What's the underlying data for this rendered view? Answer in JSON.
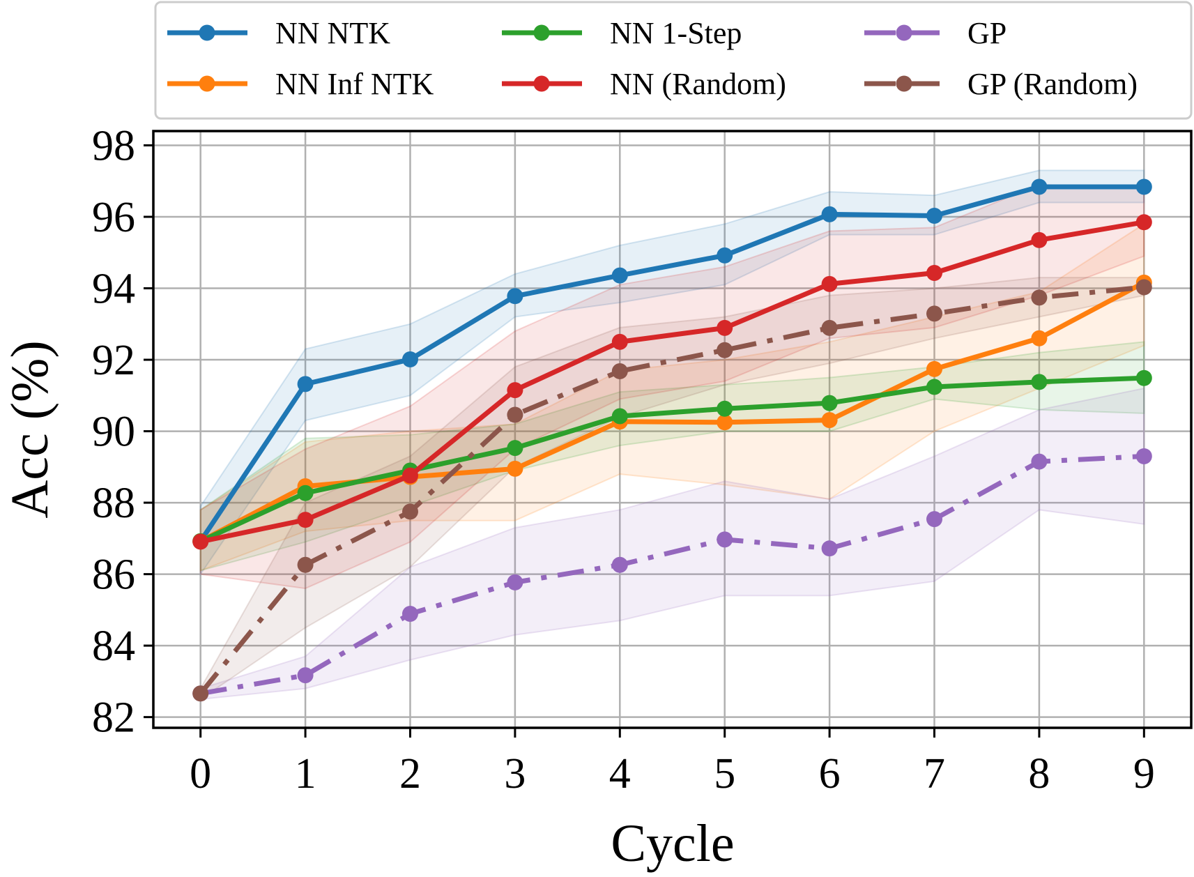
{
  "chart_data": {
    "type": "line",
    "title": "",
    "xlabel": "Cycle",
    "ylabel": "Acc (%)",
    "x": [
      0,
      1,
      2,
      3,
      4,
      5,
      6,
      7,
      8,
      9
    ],
    "xticks": [
      "0",
      "1",
      "2",
      "3",
      "4",
      "5",
      "6",
      "7",
      "8",
      "9"
    ],
    "yticks": [
      "82",
      "84",
      "86",
      "88",
      "90",
      "92",
      "94",
      "96",
      "98"
    ],
    "xlim": [
      -0.45,
      9.45
    ],
    "ylim": [
      81.7,
      98.4
    ],
    "grid": true,
    "legend": {
      "placement": "top",
      "columns": 3
    },
    "series": [
      {
        "name": "NN NTK",
        "color": "#1f77b4",
        "linestyle": "solid",
        "marker": "circle",
        "values": [
          86.92,
          91.32,
          92.01,
          93.78,
          94.36,
          94.92,
          96.07,
          96.03,
          96.84,
          96.84
        ],
        "band_low": [
          86.0,
          90.3,
          91.0,
          93.2,
          93.6,
          94.1,
          95.5,
          95.5,
          96.4,
          96.4
        ],
        "band_high": [
          87.9,
          92.3,
          93.0,
          94.4,
          95.2,
          95.8,
          96.7,
          96.6,
          97.3,
          97.3
        ]
      },
      {
        "name": "NN Inf NTK",
        "color": "#ff7f0e",
        "linestyle": "solid",
        "marker": "circle",
        "values": [
          86.92,
          88.46,
          88.72,
          88.95,
          90.27,
          90.25,
          90.31,
          91.74,
          92.6,
          94.16
        ],
        "band_low": [
          86.1,
          87.2,
          87.5,
          87.5,
          88.8,
          88.5,
          88.1,
          90.0,
          91.2,
          92.4
        ],
        "band_high": [
          87.8,
          89.7,
          90.0,
          90.2,
          91.7,
          92.0,
          92.5,
          93.2,
          93.9,
          95.8
        ]
      },
      {
        "name": "NN 1-Step",
        "color": "#2ca02c",
        "linestyle": "solid",
        "marker": "circle",
        "values": [
          86.92,
          88.27,
          88.9,
          89.53,
          90.42,
          90.63,
          90.79,
          91.24,
          91.38,
          91.49
        ],
        "band_low": [
          86.1,
          86.9,
          87.9,
          88.9,
          89.6,
          90.0,
          90.0,
          90.9,
          90.6,
          90.5
        ],
        "band_high": [
          87.8,
          89.8,
          89.9,
          90.2,
          91.1,
          91.3,
          91.5,
          91.8,
          92.2,
          92.5
        ]
      },
      {
        "name": "NN (Random)",
        "color": "#d62728",
        "linestyle": "solid",
        "marker": "circle",
        "values": [
          86.91,
          87.52,
          88.76,
          91.15,
          92.5,
          92.89,
          94.12,
          94.43,
          95.35,
          95.85
        ],
        "band_low": [
          86.0,
          85.6,
          86.9,
          89.5,
          90.9,
          91.4,
          92.6,
          92.9,
          93.8,
          94.9
        ],
        "band_high": [
          87.8,
          89.5,
          90.7,
          92.8,
          94.1,
          94.6,
          95.6,
          95.7,
          96.9,
          96.8
        ]
      },
      {
        "name": "GP",
        "color": "#9467bd",
        "linestyle": "dashdot",
        "marker": "circle",
        "values": [
          82.66,
          83.17,
          84.89,
          85.77,
          86.26,
          86.97,
          86.72,
          87.54,
          89.15,
          89.3
        ],
        "band_low": [
          82.5,
          82.8,
          83.6,
          84.3,
          84.7,
          85.4,
          85.4,
          85.8,
          87.8,
          87.4
        ],
        "band_high": [
          82.8,
          83.7,
          86.2,
          87.3,
          87.8,
          88.6,
          88.1,
          89.3,
          90.6,
          91.2
        ]
      },
      {
        "name": "GP (Random)",
        "color": "#8c564b",
        "linestyle": "dashdot",
        "marker": "circle",
        "values": [
          82.66,
          86.26,
          87.75,
          90.46,
          91.68,
          92.27,
          92.89,
          93.29,
          93.74,
          94.03
        ],
        "band_low": [
          82.5,
          84.5,
          86.2,
          89.0,
          90.4,
          91.3,
          91.9,
          92.6,
          93.2,
          93.8
        ],
        "band_high": [
          82.8,
          88.0,
          89.3,
          91.8,
          92.9,
          93.2,
          93.8,
          94.0,
          94.3,
          94.3
        ]
      }
    ]
  }
}
